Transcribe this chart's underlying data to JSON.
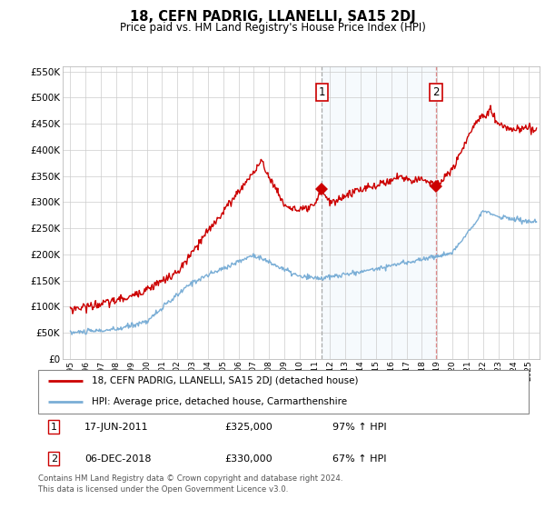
{
  "title": "18, CEFN PADRIG, LLANELLI, SA15 2DJ",
  "subtitle": "Price paid vs. HM Land Registry's House Price Index (HPI)",
  "ylim": [
    0,
    560000
  ],
  "yticks": [
    0,
    50000,
    100000,
    150000,
    200000,
    250000,
    300000,
    350000,
    400000,
    450000,
    500000,
    550000
  ],
  "ytick_labels": [
    "£0",
    "£50K",
    "£100K",
    "£150K",
    "£200K",
    "£250K",
    "£300K",
    "£350K",
    "£400K",
    "£450K",
    "£500K",
    "£550K"
  ],
  "red_color": "#cc0000",
  "blue_color": "#7aaed6",
  "shade_color": "#d0e4f7",
  "annotation1_date": "17-JUN-2011",
  "annotation1_price": "£325,000",
  "annotation1_pct": "97% ↑ HPI",
  "annotation2_date": "06-DEC-2018",
  "annotation2_price": "£330,000",
  "annotation2_pct": "67% ↑ HPI",
  "legend_label_red": "18, CEFN PADRIG, LLANELLI, SA15 2DJ (detached house)",
  "legend_label_blue": "HPI: Average price, detached house, Carmarthenshire",
  "footer": "Contains HM Land Registry data © Crown copyright and database right 2024.\nThis data is licensed under the Open Government Licence v3.0.",
  "sale1_x": 2011.46,
  "sale1_y": 325000,
  "sale2_x": 2018.92,
  "sale2_y": 330000,
  "vline1_x": 2011.46,
  "vline2_x": 2018.92,
  "shade_x1": 2011.46,
  "shade_x2": 2018.92,
  "xlim_left": 1994.5,
  "xlim_right": 2025.7
}
